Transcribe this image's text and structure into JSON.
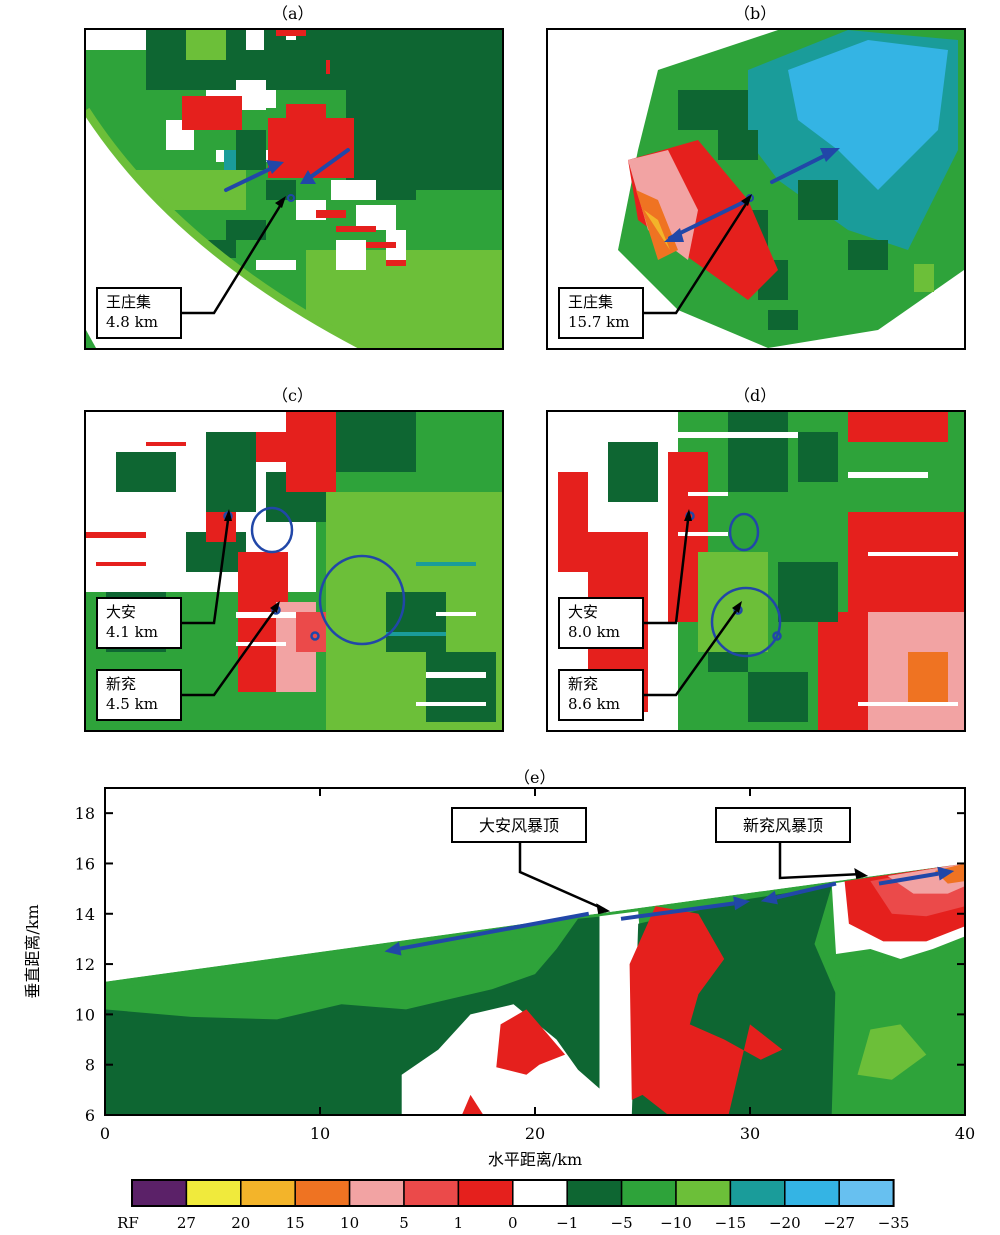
{
  "panels": {
    "a": {
      "label": "（a）",
      "callouts": [
        {
          "name": "王庄集",
          "height": "4.8 km"
        }
      ]
    },
    "b": {
      "label": "（b）",
      "callouts": [
        {
          "name": "王庄集",
          "height": "15.7 km"
        }
      ]
    },
    "c": {
      "label": "（c）",
      "callouts": [
        {
          "name": "大安",
          "height": "4.1 km"
        },
        {
          "name": "新兖",
          "height": "4.5 km"
        }
      ]
    },
    "d": {
      "label": "（d）",
      "callouts": [
        {
          "name": "大安",
          "height": "8.0 km"
        },
        {
          "name": "新兖",
          "height": "8.6 km"
        }
      ]
    },
    "e": {
      "label": "（e）",
      "callouts": [
        "大安风暴顶",
        "新兖风暴顶"
      ]
    }
  },
  "chart_data": {
    "type": "heatmap",
    "panel": "e",
    "xlabel": "水平距离/km",
    "ylabel": "垂直距离/km",
    "xlim": [
      0,
      40
    ],
    "ylim": [
      6,
      19
    ],
    "x_ticks": [
      0,
      10,
      20,
      30,
      40
    ],
    "y_ticks": [
      6,
      8,
      10,
      12,
      14,
      16,
      18
    ],
    "data_top_boundary": [
      [
        0,
        11.3
      ],
      [
        22,
        13.9
      ],
      [
        40,
        16.0
      ]
    ],
    "storm_tops": [
      {
        "label": "大安风暴顶",
        "x": 23.5,
        "y": 14.1
      },
      {
        "label": "新兖风暴顶",
        "x": 35.5,
        "y": 15.5
      }
    ],
    "flow_arrows": [
      {
        "from": [
          22.5,
          14.0
        ],
        "to": [
          13.0,
          12.5
        ]
      },
      {
        "from": [
          24.0,
          13.8
        ],
        "to": [
          30.0,
          14.5
        ]
      },
      {
        "from": [
          34.0,
          15.2
        ],
        "to": [
          30.5,
          14.5
        ]
      },
      {
        "from": [
          36.0,
          15.2
        ],
        "to": [
          39.5,
          15.7
        ]
      }
    ]
  },
  "colorbar": {
    "ticks": [
      "RF",
      "27",
      "20",
      "15",
      "10",
      "5",
      "1",
      "0",
      "−1",
      "−5",
      "−10",
      "−15",
      "−20",
      "−27",
      "−35"
    ],
    "colors": [
      "#5b2168",
      "#f0ea3c",
      "#f3b42a",
      "#ef7322",
      "#f2a3a3",
      "#eb4a4a",
      "#e5201d",
      "#ffffff",
      "#0e6632",
      "#2ea33a",
      "#6cbf39",
      "#1a9c9a",
      "#34b4e4",
      "#67c0f0"
    ]
  },
  "colors": {
    "dark_green": "#0e6632",
    "green": "#2ea33a",
    "light_green": "#6cbf39",
    "red": "#e5201d",
    "mid_red": "#eb4a4a",
    "pink": "#f2a3a3",
    "teal": "#1a9c9a",
    "sky_blue": "#34b4e4",
    "orange": "#ef7322",
    "arrow_blue": "#2147a8"
  }
}
